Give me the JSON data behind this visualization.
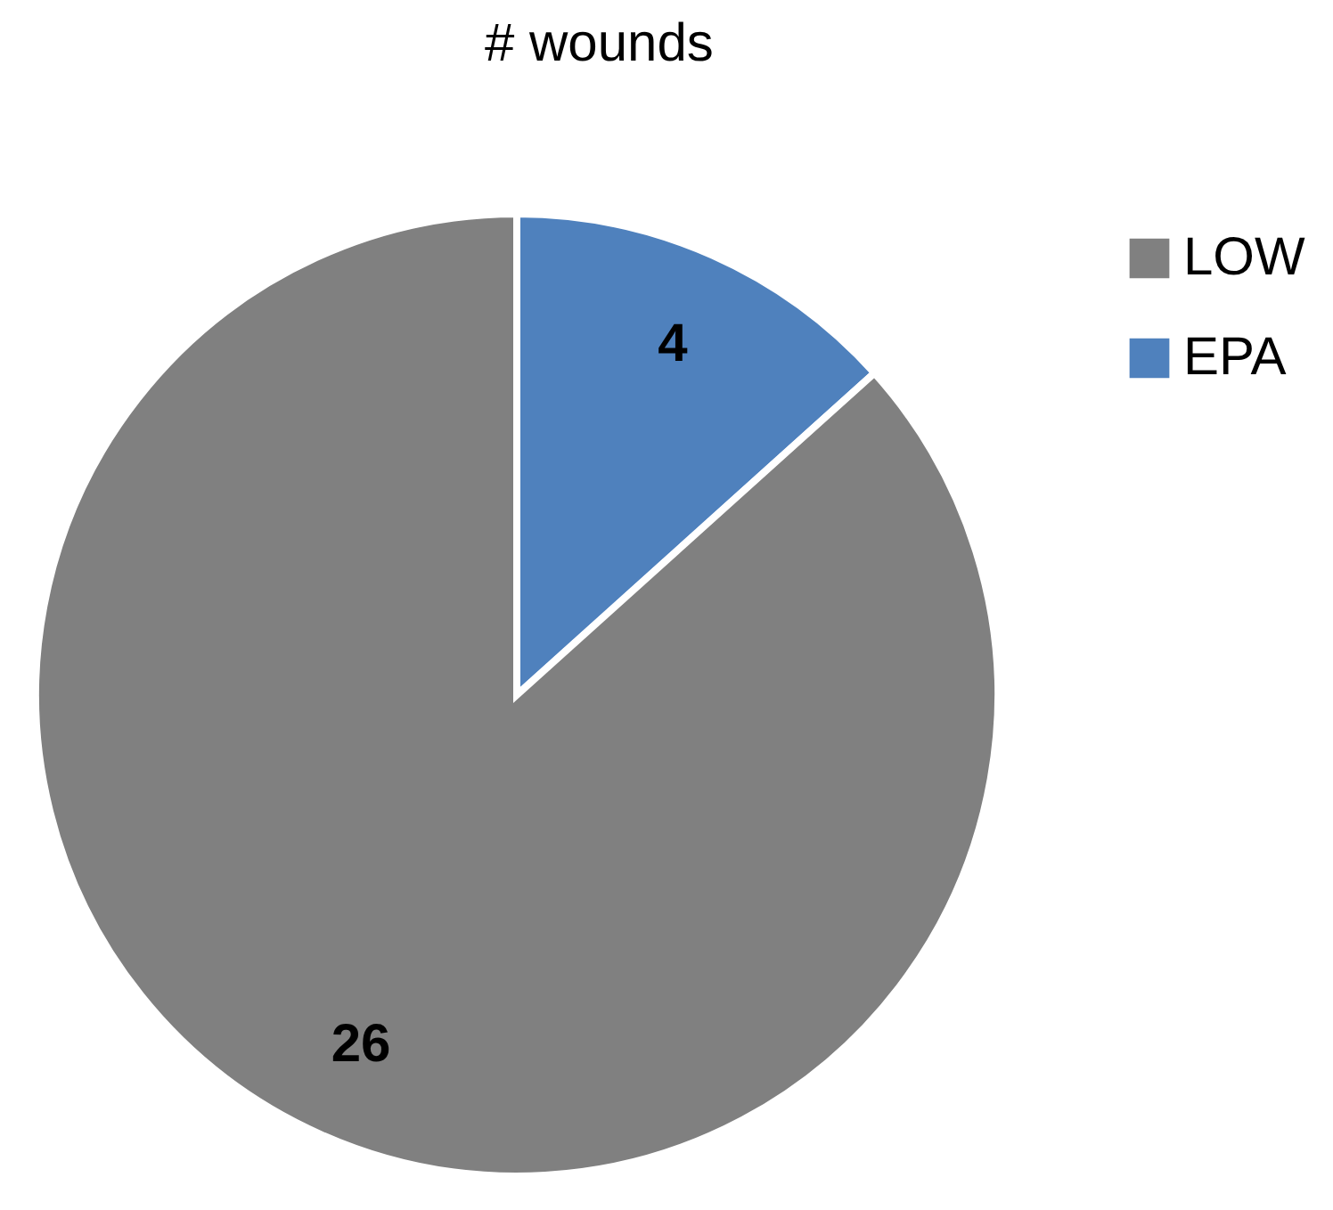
{
  "chart_data": {
    "type": "pie",
    "title": "# wounds",
    "categories": [
      "LOW",
      "EPA"
    ],
    "values": [
      26,
      4
    ],
    "colors": [
      "#808080",
      "#4f81bd"
    ],
    "data_labels": true,
    "legend": "top right"
  }
}
